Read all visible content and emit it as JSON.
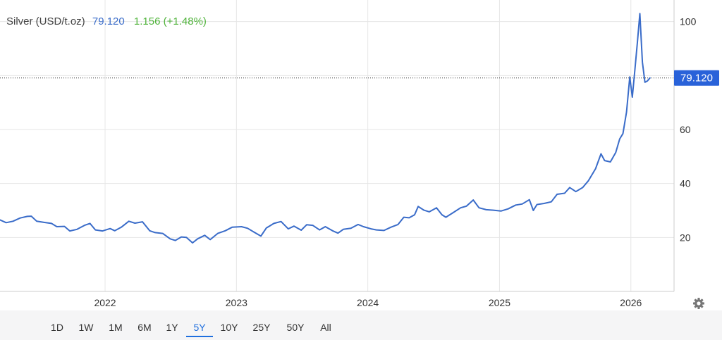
{
  "header": {
    "instrument": "Silver (USD/t.oz)",
    "price": "79.120",
    "change": "1.156 (+1.48%)"
  },
  "price_tag": "79.120",
  "range_buttons": [
    {
      "label": "1D",
      "active": false
    },
    {
      "label": "1W",
      "active": false
    },
    {
      "label": "1M",
      "active": false
    },
    {
      "label": "6M",
      "active": false
    },
    {
      "label": "1Y",
      "active": false
    },
    {
      "label": "5Y",
      "active": true
    },
    {
      "label": "10Y",
      "active": false
    },
    {
      "label": "25Y",
      "active": false
    },
    {
      "label": "50Y",
      "active": false
    },
    {
      "label": "All",
      "active": false
    }
  ],
  "icons": {
    "settings": "gear-icon"
  },
  "colors": {
    "line": "#3a6cc9",
    "price_text": "#3a6cc9",
    "change_text": "#4fb33a",
    "tag_bg": "#2962d9",
    "active_button": "#1f6fde"
  },
  "chart_data": {
    "type": "line",
    "title": "Silver (USD/t.oz)",
    "xlabel": "",
    "ylabel": "",
    "ylim": [
      0,
      108
    ],
    "xlim": [
      "2021-03-15",
      "2026-05-01"
    ],
    "yticks": [
      20,
      40,
      60,
      100
    ],
    "xticks": [
      "2022",
      "2023",
      "2024",
      "2025",
      "2026"
    ],
    "grid": true,
    "legend": "none",
    "last_price": 79.12,
    "series": [
      {
        "points": [
          [
            "2021-03-15",
            26.5
          ],
          [
            "2021-04-01",
            25.5
          ],
          [
            "2021-04-20",
            26.0
          ],
          [
            "2021-05-10",
            27.2
          ],
          [
            "2021-05-30",
            27.8
          ],
          [
            "2021-06-10",
            27.9
          ],
          [
            "2021-06-25",
            26.0
          ],
          [
            "2021-07-15",
            25.6
          ],
          [
            "2021-08-05",
            25.2
          ],
          [
            "2021-08-20",
            24.0
          ],
          [
            "2021-09-10",
            24.1
          ],
          [
            "2021-09-25",
            22.4
          ],
          [
            "2021-10-15",
            23.0
          ],
          [
            "2021-11-05",
            24.5
          ],
          [
            "2021-11-20",
            25.2
          ],
          [
            "2021-12-05",
            22.8
          ],
          [
            "2021-12-25",
            22.4
          ],
          [
            "2022-01-15",
            23.3
          ],
          [
            "2022-01-28",
            22.5
          ],
          [
            "2022-02-15",
            23.8
          ],
          [
            "2022-03-08",
            26.0
          ],
          [
            "2022-03-25",
            25.3
          ],
          [
            "2022-04-15",
            25.8
          ],
          [
            "2022-05-05",
            22.5
          ],
          [
            "2022-05-20",
            21.8
          ],
          [
            "2022-06-10",
            21.5
          ],
          [
            "2022-07-01",
            19.5
          ],
          [
            "2022-07-15",
            18.9
          ],
          [
            "2022-08-01",
            20.2
          ],
          [
            "2022-08-15",
            20.0
          ],
          [
            "2022-09-01",
            18.0
          ],
          [
            "2022-09-15",
            19.5
          ],
          [
            "2022-10-05",
            20.8
          ],
          [
            "2022-10-20",
            19.2
          ],
          [
            "2022-11-10",
            21.5
          ],
          [
            "2022-12-01",
            22.5
          ],
          [
            "2022-12-20",
            23.8
          ],
          [
            "2023-01-15",
            24.0
          ],
          [
            "2023-02-01",
            23.4
          ],
          [
            "2023-02-20",
            21.9
          ],
          [
            "2023-03-10",
            20.5
          ],
          [
            "2023-03-25",
            23.5
          ],
          [
            "2023-04-15",
            25.2
          ],
          [
            "2023-05-05",
            25.9
          ],
          [
            "2023-05-25",
            23.2
          ],
          [
            "2023-06-10",
            24.2
          ],
          [
            "2023-06-30",
            22.7
          ],
          [
            "2023-07-15",
            24.7
          ],
          [
            "2023-08-01",
            24.5
          ],
          [
            "2023-08-20",
            22.8
          ],
          [
            "2023-09-05",
            24.0
          ],
          [
            "2023-09-25",
            22.5
          ],
          [
            "2023-10-10",
            21.6
          ],
          [
            "2023-10-25",
            23.0
          ],
          [
            "2023-11-15",
            23.4
          ],
          [
            "2023-12-05",
            24.8
          ],
          [
            "2023-12-20",
            24.0
          ],
          [
            "2024-01-10",
            23.2
          ],
          [
            "2024-01-25",
            22.8
          ],
          [
            "2024-02-15",
            22.6
          ],
          [
            "2024-03-05",
            23.8
          ],
          [
            "2024-03-25",
            24.8
          ],
          [
            "2024-04-10",
            27.5
          ],
          [
            "2024-04-25",
            27.3
          ],
          [
            "2024-05-10",
            28.4
          ],
          [
            "2024-05-20",
            31.5
          ],
          [
            "2024-06-05",
            30.1
          ],
          [
            "2024-06-20",
            29.5
          ],
          [
            "2024-07-10",
            31.0
          ],
          [
            "2024-07-25",
            28.4
          ],
          [
            "2024-08-05",
            27.5
          ],
          [
            "2024-08-25",
            29.2
          ],
          [
            "2024-09-15",
            31.0
          ],
          [
            "2024-10-01",
            31.6
          ],
          [
            "2024-10-20",
            33.9
          ],
          [
            "2024-11-05",
            31.0
          ],
          [
            "2024-11-25",
            30.3
          ],
          [
            "2024-12-15",
            30.1
          ],
          [
            "2025-01-05",
            29.8
          ],
          [
            "2025-01-25",
            30.6
          ],
          [
            "2025-02-15",
            32.0
          ],
          [
            "2025-03-05",
            32.4
          ],
          [
            "2025-03-25",
            34.0
          ],
          [
            "2025-04-05",
            30.0
          ],
          [
            "2025-04-15",
            32.2
          ],
          [
            "2025-05-05",
            32.6
          ],
          [
            "2025-05-25",
            33.2
          ],
          [
            "2025-06-10",
            36.0
          ],
          [
            "2025-07-01",
            36.4
          ],
          [
            "2025-07-15",
            38.5
          ],
          [
            "2025-08-01",
            37.0
          ],
          [
            "2025-08-20",
            38.5
          ],
          [
            "2025-09-05",
            41.0
          ],
          [
            "2025-09-25",
            45.5
          ],
          [
            "2025-10-10",
            51.0
          ],
          [
            "2025-10-20",
            48.5
          ],
          [
            "2025-11-05",
            48.0
          ],
          [
            "2025-11-20",
            51.5
          ],
          [
            "2025-12-01",
            56.5
          ],
          [
            "2025-12-10",
            58.5
          ],
          [
            "2025-12-20",
            66.5
          ],
          [
            "2025-12-29",
            79.5
          ],
          [
            "2026-01-05",
            72.0
          ],
          [
            "2026-01-12",
            82.0
          ],
          [
            "2026-01-19",
            92.0
          ],
          [
            "2026-01-26",
            103.0
          ],
          [
            "2026-02-02",
            85.0
          ],
          [
            "2026-02-09",
            77.5
          ],
          [
            "2026-02-16",
            78.0
          ],
          [
            "2026-02-23",
            79.12
          ]
        ]
      }
    ]
  }
}
